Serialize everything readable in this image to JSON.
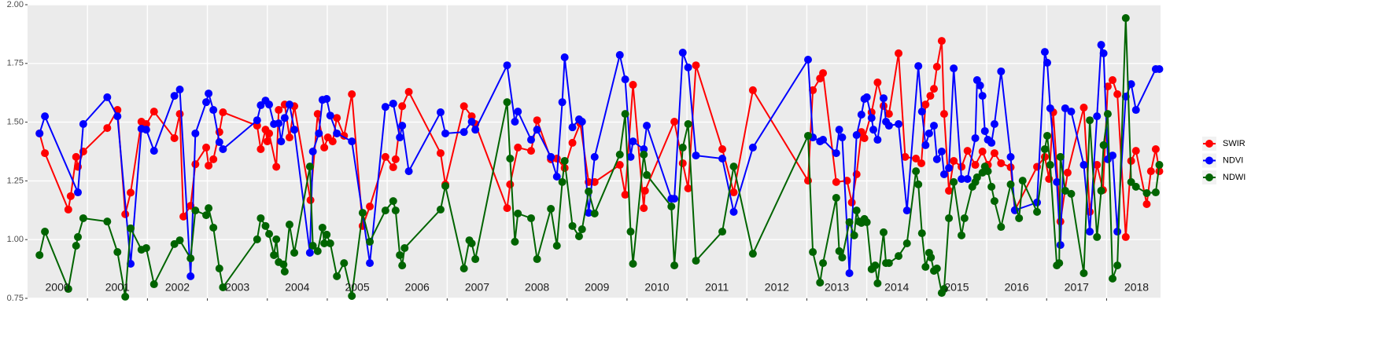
{
  "chart_data": {
    "type": "line",
    "xlim": [
      2000,
      2018.9
    ],
    "ylim": [
      0.75,
      2.0
    ],
    "yticks": [
      {
        "value": 0.75,
        "label": "0.75"
      },
      {
        "value": 1,
        "label": "1.00"
      },
      {
        "value": 1.25,
        "label": "1.25"
      },
      {
        "value": 1.5,
        "label": "1.50"
      },
      {
        "value": 1.75,
        "label": "1.75"
      },
      {
        "value": 2,
        "label": "2.00"
      }
    ],
    "xgrid": [
      2001,
      2002,
      2003,
      2004,
      2005,
      2006,
      2007,
      2008,
      2009,
      2010,
      2011,
      2012,
      2013,
      2014,
      2015,
      2016,
      2017,
      2018
    ],
    "xticks": [
      {
        "value": 2000.5,
        "label": "2000"
      },
      {
        "value": 2001.5,
        "label": "2001"
      },
      {
        "value": 2002.5,
        "label": "2002"
      },
      {
        "value": 2003.5,
        "label": "2003"
      },
      {
        "value": 2004.5,
        "label": "2004"
      },
      {
        "value": 2005.5,
        "label": "2005"
      },
      {
        "value": 2006.5,
        "label": "2006"
      },
      {
        "value": 2007.5,
        "label": "2007"
      },
      {
        "value": 2008.5,
        "label": "2008"
      },
      {
        "value": 2009.5,
        "label": "2009"
      },
      {
        "value": 2010.5,
        "label": "2010"
      },
      {
        "value": 2011.5,
        "label": "2011"
      },
      {
        "value": 2012.5,
        "label": "2012"
      },
      {
        "value": 2013.5,
        "label": "2013"
      },
      {
        "value": 2014.5,
        "label": "2014"
      },
      {
        "value": 2015.5,
        "label": "2015"
      },
      {
        "value": 2016.5,
        "label": "2016"
      },
      {
        "value": 2017.5,
        "label": "2017"
      },
      {
        "value": 2018.5,
        "label": "2018"
      }
    ],
    "grid": true,
    "legend": "right",
    "series": [
      {
        "name": "SWIR",
        "color": "#ff0000",
        "x": [
          2000.2,
          2000.29,
          2000.68,
          2000.72,
          2000.81,
          2000.84,
          2000.93,
          2001.33,
          2001.5,
          2001.63,
          2001.72,
          2001.9,
          2001.98,
          2002.11,
          2002.45,
          2002.54,
          2002.6,
          2002.72,
          2002.8,
          2002.98,
          2003.02,
          2003.1,
          2003.2,
          2003.26,
          2003.83,
          2003.89,
          2003.97,
          2004.0,
          2004.03,
          2004.15,
          2004.19,
          2004.29,
          2004.37,
          2004.45,
          2004.72,
          2004.84,
          2004.95,
          2005.01,
          2005.09,
          2005.16,
          2005.28,
          2005.41,
          2005.59,
          2005.71,
          2005.97,
          2006.1,
          2006.14,
          2006.25,
          2006.36,
          2006.89,
          2006.97,
          2007.28,
          2007.41,
          2007.47,
          2008.0,
          2008.05,
          2008.18,
          2008.4,
          2008.5,
          2008.73,
          2008.83,
          2008.96,
          2009.09,
          2009.22,
          2009.36,
          2009.46,
          2009.88,
          2009.97,
          2010.1,
          2010.28,
          2010.3,
          2010.79,
          2010.93,
          2011.02,
          2011.15,
          2011.59,
          2011.78,
          2012.1,
          2013.02,
          2013.1,
          2013.22,
          2013.27,
          2013.49,
          2013.67,
          2013.75,
          2013.83,
          2013.91,
          2013.96,
          2014.08,
          2014.18,
          2014.28,
          2014.37,
          2014.53,
          2014.64,
          2014.82,
          2014.91,
          2014.98,
          2015.06,
          2015.12,
          2015.17,
          2015.25,
          2015.29,
          2015.37,
          2015.45,
          2015.58,
          2015.68,
          2015.81,
          2015.93,
          2016.02,
          2016.13,
          2016.24,
          2016.4,
          2016.47,
          2016.84,
          2016.97,
          2017.04,
          2017.11,
          2017.23,
          2017.35,
          2017.62,
          2017.72,
          2017.84,
          2017.94,
          2018.02,
          2018.1,
          2018.18,
          2018.32,
          2018.41,
          2018.49,
          2018.67,
          2018.74,
          2018.82,
          2018.88
        ],
        "values": [
          1.452,
          1.368,
          1.128,
          1.185,
          1.352,
          1.31,
          1.375,
          1.475,
          1.552,
          1.108,
          1.2,
          1.502,
          1.492,
          1.545,
          1.432,
          1.535,
          1.098,
          1.144,
          1.321,
          1.392,
          1.315,
          1.342,
          1.458,
          1.542,
          1.485,
          1.385,
          1.468,
          1.418,
          1.452,
          1.31,
          1.552,
          1.575,
          1.435,
          1.568,
          1.168,
          1.535,
          1.392,
          1.435,
          1.418,
          1.518,
          1.442,
          1.619,
          1.058,
          1.141,
          1.352,
          1.308,
          1.342,
          1.568,
          1.629,
          1.368,
          1.235,
          1.568,
          1.525,
          1.492,
          1.134,
          1.235,
          1.392,
          1.378,
          1.508,
          1.342,
          1.345,
          1.305,
          1.412,
          1.495,
          1.245,
          1.245,
          1.318,
          1.191,
          1.659,
          1.134,
          1.208,
          1.502,
          1.325,
          1.218,
          1.742,
          1.385,
          1.201,
          1.636,
          1.251,
          1.636,
          1.686,
          1.709,
          1.245,
          1.251,
          1.158,
          1.278,
          1.458,
          1.432,
          1.542,
          1.669,
          1.569,
          1.535,
          1.793,
          1.352,
          1.345,
          1.325,
          1.575,
          1.612,
          1.642,
          1.736,
          1.846,
          1.535,
          1.208,
          1.335,
          1.31,
          1.378,
          1.318,
          1.375,
          1.318,
          1.368,
          1.325,
          1.308,
          1.125,
          1.31,
          1.352,
          1.258,
          1.542,
          1.077,
          1.285,
          1.562,
          1.118,
          1.318,
          1.211,
          1.652,
          1.679,
          1.619,
          1.011,
          1.335,
          1.378,
          1.151,
          1.291,
          1.385,
          1.291
        ]
      },
      {
        "name": "NDVI",
        "color": "#0000ff",
        "x": [
          2000.2,
          2000.29,
          2000.84,
          2000.93,
          2001.33,
          2001.5,
          2001.72,
          2001.9,
          2001.98,
          2002.11,
          2002.45,
          2002.54,
          2002.72,
          2002.8,
          2002.98,
          2003.02,
          2003.1,
          2003.2,
          2003.26,
          2003.83,
          2003.89,
          2003.97,
          2004.03,
          2004.11,
          2004.19,
          2004.23,
          2004.29,
          2004.37,
          2004.45,
          2004.71,
          2004.76,
          2004.86,
          2004.92,
          2004.99,
          2005.05,
          2005.16,
          2005.41,
          2005.71,
          2005.97,
          2006.1,
          2006.21,
          2006.25,
          2006.36,
          2006.89,
          2006.97,
          2007.28,
          2007.41,
          2007.47,
          2008.0,
          2008.13,
          2008.18,
          2008.4,
          2008.5,
          2008.73,
          2008.83,
          2008.92,
          2008.96,
          2009.09,
          2009.2,
          2009.25,
          2009.36,
          2009.46,
          2009.88,
          2009.97,
          2010.06,
          2010.1,
          2010.28,
          2010.33,
          2010.74,
          2010.79,
          2010.93,
          2011.02,
          2011.15,
          2011.59,
          2011.78,
          2012.1,
          2013.02,
          2013.1,
          2013.22,
          2013.27,
          2013.49,
          2013.54,
          2013.59,
          2013.71,
          2013.83,
          2013.91,
          2013.96,
          2014.0,
          2014.08,
          2014.11,
          2014.18,
          2014.28,
          2014.32,
          2014.37,
          2014.53,
          2014.67,
          2014.86,
          2014.92,
          2014.98,
          2015.04,
          2015.12,
          2015.17,
          2015.25,
          2015.29,
          2015.37,
          2015.45,
          2015.58,
          2015.68,
          2015.81,
          2015.84,
          2015.89,
          2015.93,
          2015.97,
          2016.02,
          2016.08,
          2016.13,
          2016.24,
          2016.4,
          2016.47,
          2016.84,
          2016.97,
          2017.01,
          2017.06,
          2017.17,
          2017.23,
          2017.31,
          2017.41,
          2017.62,
          2017.72,
          2017.84,
          2017.91,
          2017.95,
          2018.02,
          2018.1,
          2018.18,
          2018.32,
          2018.41,
          2018.49,
          2018.82,
          2018.88
        ],
        "values": [
          1.452,
          1.525,
          1.201,
          1.492,
          1.606,
          1.525,
          0.897,
          1.472,
          1.468,
          1.378,
          1.612,
          1.639,
          0.844,
          1.452,
          1.585,
          1.622,
          1.552,
          1.415,
          1.385,
          1.508,
          1.572,
          1.592,
          1.575,
          1.492,
          1.495,
          1.418,
          1.518,
          1.575,
          1.468,
          0.944,
          1.375,
          1.452,
          1.595,
          1.599,
          1.528,
          1.452,
          1.418,
          0.9,
          1.565,
          1.579,
          1.435,
          1.485,
          1.291,
          1.542,
          1.452,
          1.458,
          1.502,
          1.468,
          1.742,
          1.502,
          1.545,
          1.425,
          1.468,
          1.352,
          1.268,
          1.585,
          1.776,
          1.478,
          1.512,
          1.502,
          1.114,
          1.352,
          1.786,
          1.682,
          1.352,
          1.418,
          1.385,
          1.485,
          1.174,
          1.174,
          1.796,
          1.733,
          1.358,
          1.345,
          1.118,
          1.392,
          1.766,
          1.435,
          1.418,
          1.425,
          1.368,
          1.468,
          1.435,
          0.857,
          1.445,
          1.532,
          1.599,
          1.606,
          1.518,
          1.468,
          1.425,
          1.602,
          1.502,
          1.485,
          1.492,
          1.124,
          1.739,
          1.545,
          1.402,
          1.452,
          1.485,
          1.342,
          1.375,
          1.278,
          1.305,
          1.729,
          1.258,
          1.258,
          1.432,
          1.679,
          1.656,
          1.612,
          1.462,
          1.425,
          1.412,
          1.492,
          1.716,
          1.352,
          1.125,
          1.158,
          1.799,
          1.753,
          1.559,
          1.245,
          0.977,
          1.559,
          1.545,
          1.318,
          1.034,
          1.525,
          1.829,
          1.793,
          1.342,
          1.358,
          1.034,
          1.609,
          1.662,
          1.552,
          1.726,
          1.726
        ]
      },
      {
        "name": "NDWI",
        "color": "#006400",
        "x": [
          2000.2,
          2000.29,
          2000.68,
          2000.81,
          2000.84,
          2000.93,
          2001.33,
          2001.5,
          2001.63,
          2001.72,
          2001.9,
          2001.98,
          2002.11,
          2002.45,
          2002.54,
          2002.72,
          2002.8,
          2002.98,
          2003.02,
          2003.1,
          2003.2,
          2003.26,
          2003.83,
          2003.89,
          2003.97,
          2004.03,
          2004.11,
          2004.15,
          2004.19,
          2004.27,
          2004.29,
          2004.37,
          2004.45,
          2004.71,
          2004.76,
          2004.84,
          2004.92,
          2004.95,
          2004.99,
          2005.05,
          2005.16,
          2005.28,
          2005.41,
          2005.59,
          2005.71,
          2005.97,
          2006.1,
          2006.14,
          2006.21,
          2006.25,
          2006.29,
          2006.89,
          2006.97,
          2007.28,
          2007.37,
          2007.41,
          2007.47,
          2008.0,
          2008.05,
          2008.13,
          2008.18,
          2008.4,
          2008.5,
          2008.73,
          2008.83,
          2008.92,
          2008.96,
          2009.09,
          2009.2,
          2009.25,
          2009.36,
          2009.46,
          2009.88,
          2009.97,
          2010.06,
          2010.1,
          2010.28,
          2010.33,
          2010.74,
          2010.79,
          2010.93,
          2011.02,
          2011.15,
          2011.59,
          2011.78,
          2012.1,
          2013.02,
          2013.1,
          2013.22,
          2013.27,
          2013.49,
          2013.54,
          2013.59,
          2013.71,
          2013.79,
          2013.83,
          2013.87,
          2013.91,
          2013.96,
          2014.0,
          2014.08,
          2014.14,
          2014.18,
          2014.28,
          2014.32,
          2014.37,
          2014.53,
          2014.67,
          2014.82,
          2014.86,
          2014.92,
          2014.98,
          2015.04,
          2015.07,
          2015.12,
          2015.17,
          2015.25,
          2015.29,
          2015.37,
          2015.45,
          2015.58,
          2015.63,
          2015.76,
          2015.81,
          2015.84,
          2015.93,
          2015.97,
          2016.02,
          2016.08,
          2016.13,
          2016.24,
          2016.4,
          2016.54,
          2016.6,
          2016.84,
          2016.97,
          2017.01,
          2017.06,
          2017.17,
          2017.21,
          2017.23,
          2017.31,
          2017.41,
          2017.62,
          2017.72,
          2017.84,
          2017.91,
          2017.95,
          2018.02,
          2018.1,
          2018.18,
          2018.32,
          2018.41,
          2018.49,
          2018.67,
          2018.82,
          2018.88
        ],
        "values": [
          0.934,
          1.034,
          0.79,
          0.974,
          1.011,
          1.091,
          1.077,
          0.947,
          0.757,
          1.048,
          0.957,
          0.964,
          0.81,
          0.981,
          0.997,
          0.92,
          1.124,
          1.104,
          1.134,
          1.051,
          0.877,
          0.797,
          1.001,
          1.091,
          1.058,
          1.024,
          0.934,
          1.001,
          0.904,
          0.894,
          0.864,
          1.064,
          0.944,
          1.311,
          0.974,
          0.951,
          1.051,
          0.984,
          1.021,
          0.984,
          0.844,
          0.9,
          0.76,
          1.114,
          0.991,
          1.124,
          1.164,
          1.124,
          0.934,
          0.89,
          0.964,
          1.128,
          1.228,
          0.877,
          0.997,
          0.984,
          0.917,
          1.585,
          1.345,
          0.991,
          1.111,
          1.091,
          0.917,
          1.131,
          0.974,
          1.245,
          1.335,
          1.058,
          1.014,
          1.044,
          1.205,
          1.111,
          1.362,
          1.535,
          1.034,
          0.897,
          1.362,
          1.275,
          1.141,
          0.89,
          1.392,
          1.492,
          0.91,
          1.034,
          1.311,
          0.94,
          1.442,
          0.947,
          0.817,
          0.9,
          1.178,
          0.951,
          0.924,
          1.074,
          1.018,
          1.124,
          1.077,
          1.071,
          1.088,
          1.074,
          0.874,
          0.89,
          0.814,
          1.031,
          0.9,
          0.9,
          0.93,
          0.984,
          1.291,
          1.235,
          1.027,
          0.884,
          0.944,
          0.924,
          0.867,
          0.877,
          0.773,
          0.79,
          1.091,
          1.245,
          1.018,
          1.091,
          1.225,
          1.245,
          1.265,
          1.285,
          1.311,
          1.291,
          1.225,
          1.164,
          1.054,
          1.235,
          1.091,
          1.251,
          1.118,
          1.385,
          1.442,
          1.318,
          0.89,
          0.9,
          1.352,
          1.208,
          1.195,
          0.857,
          1.508,
          1.011,
          1.208,
          1.402,
          1.535,
          0.834,
          0.89,
          1.943,
          1.245,
          1.225,
          1.198,
          1.201,
          1.318
        ]
      }
    ]
  }
}
